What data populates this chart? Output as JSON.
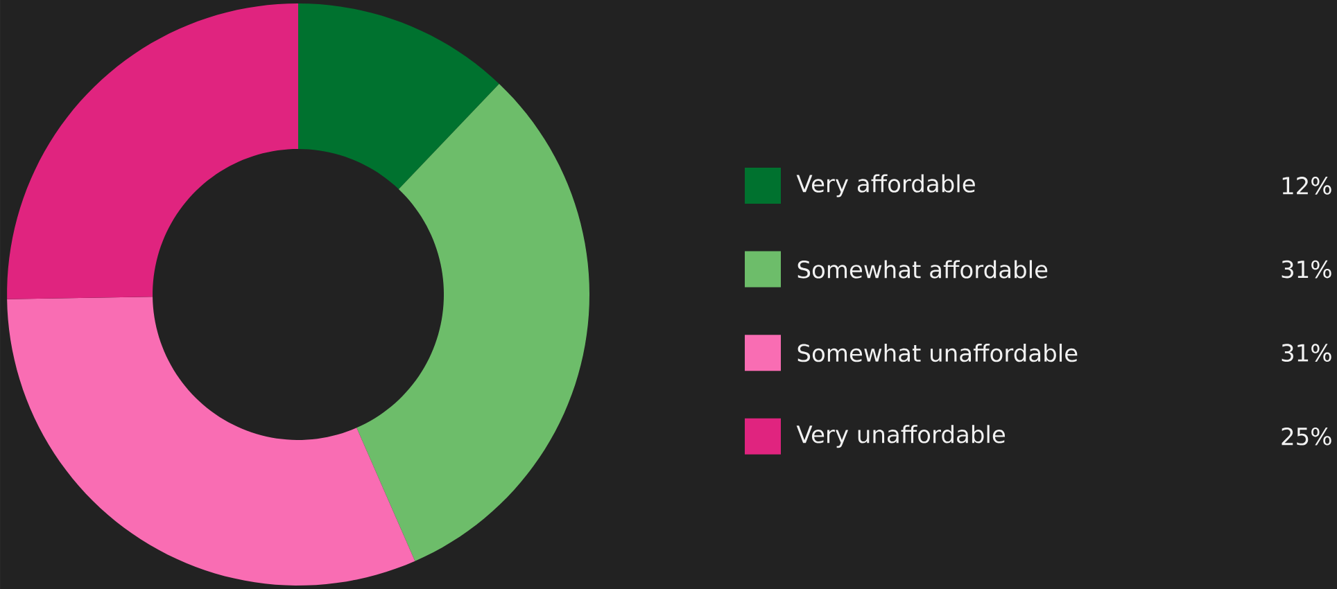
{
  "chart_data": {
    "type": "donut",
    "categories": [
      "Very affordable",
      "Somewhat affordable",
      "Somewhat unaffordable",
      "Very unaffordable"
    ],
    "values": [
      12,
      31,
      31,
      25
    ],
    "value_labels": [
      "12%",
      "31%",
      "31%",
      "25%"
    ],
    "colors": [
      "#00722f",
      "#6dbd6a",
      "#f96db3",
      "#e0247f"
    ],
    "legend": "right"
  }
}
